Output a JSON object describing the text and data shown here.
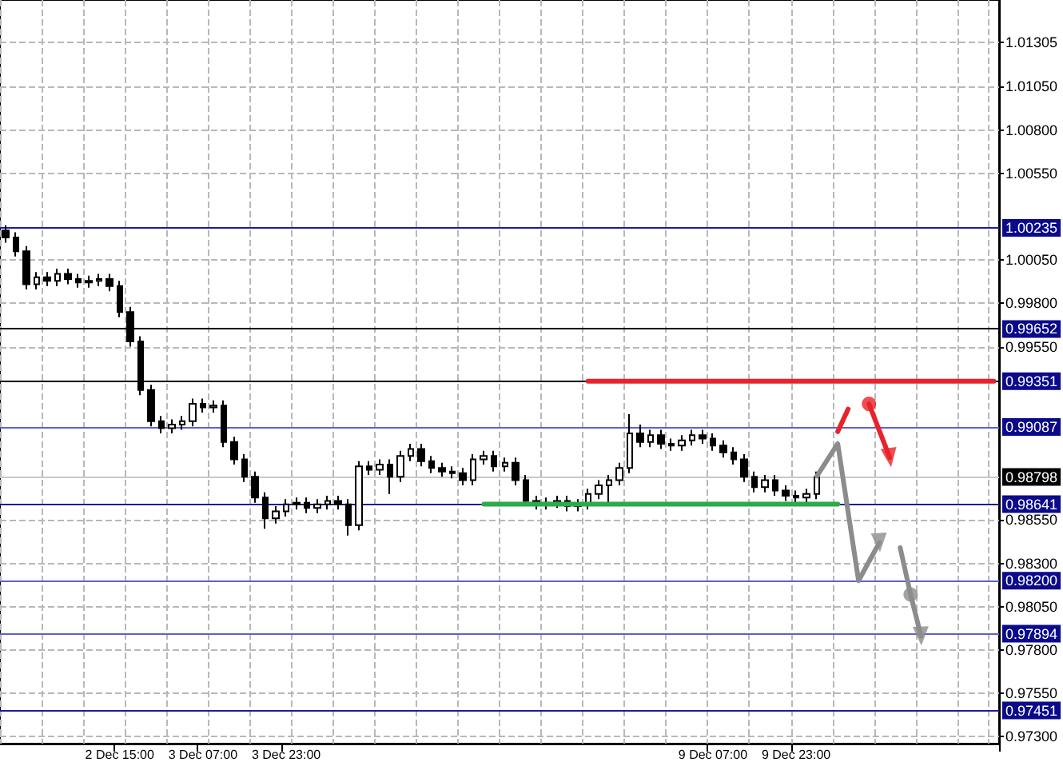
{
  "chart_data": {
    "type": "candlestick",
    "categories": [
      null,
      null,
      null,
      null,
      null,
      null,
      null,
      null,
      null,
      null,
      null,
      "2 Dec 15:00",
      null,
      null,
      null,
      null,
      null,
      null,
      null,
      "3 Dec 07:00",
      null,
      null,
      null,
      null,
      null,
      null,
      null,
      "3 Dec 23:00",
      null,
      null,
      null,
      null,
      null,
      null,
      null,
      null,
      null,
      null,
      null,
      null,
      null,
      null,
      null,
      null,
      null,
      null,
      null,
      null,
      null,
      null,
      null,
      null,
      null,
      null,
      null,
      null,
      null,
      null,
      null,
      null,
      null,
      null,
      null,
      null,
      null,
      null,
      null,
      null,
      "9 Dec 07:00",
      null,
      null,
      null,
      null,
      null,
      null,
      null,
      "9 Dec 23:00",
      null,
      null,
      null,
      null,
      null,
      null,
      null,
      null,
      null,
      null,
      null,
      null,
      null,
      null,
      null,
      null,
      null,
      null,
      null
    ],
    "ohlc": [
      [
        1.0022,
        1.0025,
        1.0015,
        1.0018
      ],
      [
        1.0018,
        1.0021,
        1.0007,
        1.001
      ],
      [
        1.001,
        1.0013,
        0.9988,
        0.9991
      ],
      [
        0.9991,
        0.9998,
        0.9988,
        0.9995
      ],
      [
        0.9995,
        0.9998,
        0.999,
        0.9993
      ],
      [
        0.9993,
        1.0,
        0.999,
        0.9997
      ],
      [
        0.9997,
        1.0,
        0.9991,
        0.9994
      ],
      [
        0.9994,
        0.9997,
        0.9989,
        0.9992
      ],
      [
        0.9992,
        0.9996,
        0.9989,
        0.9993
      ],
      [
        0.9993,
        0.9997,
        0.999,
        0.9994
      ],
      [
        0.9994,
        0.9997,
        0.9987,
        0.999
      ],
      [
        0.999,
        0.9993,
        0.9972,
        0.9975
      ],
      [
        0.9975,
        0.9978,
        0.9955,
        0.9958
      ],
      [
        0.9958,
        0.9961,
        0.9927,
        0.993
      ],
      [
        0.993,
        0.9933,
        0.9909,
        0.9912
      ],
      [
        0.9912,
        0.9915,
        0.9905,
        0.9908
      ],
      [
        0.9908,
        0.9913,
        0.9905,
        0.991
      ],
      [
        0.991,
        0.9915,
        0.9907,
        0.9912
      ],
      [
        0.9912,
        0.9925,
        0.9909,
        0.9922
      ],
      [
        0.9922,
        0.9925,
        0.9917,
        0.992
      ],
      [
        0.992,
        0.9924,
        0.9917,
        0.9921
      ],
      [
        0.9921,
        0.9924,
        0.9897,
        0.99
      ],
      [
        0.99,
        0.9903,
        0.9887,
        0.989
      ],
      [
        0.989,
        0.9893,
        0.9877,
        0.988
      ],
      [
        0.988,
        0.9883,
        0.9865,
        0.9868
      ],
      [
        0.9868,
        0.9871,
        0.985,
        0.9856
      ],
      [
        0.9856,
        0.9863,
        0.9853,
        0.986
      ],
      [
        0.986,
        0.9867,
        0.9857,
        0.9864
      ],
      [
        0.9864,
        0.9868,
        0.9861,
        0.9865
      ],
      [
        0.9865,
        0.9868,
        0.9859,
        0.9862
      ],
      [
        0.9862,
        0.9867,
        0.9859,
        0.9864
      ],
      [
        0.9864,
        0.9869,
        0.9861,
        0.9866
      ],
      [
        0.9866,
        0.9869,
        0.9861,
        0.9864
      ],
      [
        0.9864,
        0.9867,
        0.9846,
        0.9852
      ],
      [
        0.9852,
        0.9889,
        0.9849,
        0.9886
      ],
      [
        0.9886,
        0.9889,
        0.9881,
        0.9884
      ],
      [
        0.9884,
        0.989,
        0.9881,
        0.9887
      ],
      [
        0.9887,
        0.989,
        0.987,
        0.988
      ],
      [
        0.988,
        0.9895,
        0.9877,
        0.9892
      ],
      [
        0.9892,
        0.9899,
        0.9889,
        0.9896
      ],
      [
        0.9896,
        0.9899,
        0.9886,
        0.9889
      ],
      [
        0.9889,
        0.9892,
        0.9882,
        0.9885
      ],
      [
        0.9885,
        0.9888,
        0.988,
        0.9883
      ],
      [
        0.9883,
        0.9886,
        0.9879,
        0.9882
      ],
      [
        0.9882,
        0.9885,
        0.9875,
        0.9878
      ],
      [
        0.9878,
        0.9893,
        0.9875,
        0.989
      ],
      [
        0.989,
        0.9895,
        0.9887,
        0.9892
      ],
      [
        0.9892,
        0.9895,
        0.9883,
        0.9886
      ],
      [
        0.9886,
        0.9891,
        0.9883,
        0.9888
      ],
      [
        0.9888,
        0.9891,
        0.9875,
        0.9878
      ],
      [
        0.9878,
        0.9881,
        0.9863,
        0.9866
      ],
      [
        0.9866,
        0.9869,
        0.9861,
        0.9864
      ],
      [
        0.9864,
        0.9868,
        0.9861,
        0.9865
      ],
      [
        0.9865,
        0.9869,
        0.9862,
        0.9866
      ],
      [
        0.9866,
        0.9869,
        0.986,
        0.9863
      ],
      [
        0.9863,
        0.9867,
        0.986,
        0.9864
      ],
      [
        0.9864,
        0.9873,
        0.9861,
        0.987
      ],
      [
        0.987,
        0.9878,
        0.9867,
        0.9875
      ],
      [
        0.9875,
        0.9881,
        0.9864,
        0.9878
      ],
      [
        0.9878,
        0.9888,
        0.9875,
        0.9885
      ],
      [
        0.9885,
        0.9916,
        0.9882,
        0.9905
      ],
      [
        0.9905,
        0.991,
        0.9897,
        0.99
      ],
      [
        0.99,
        0.9907,
        0.9897,
        0.9904
      ],
      [
        0.9904,
        0.9907,
        0.9896,
        0.9899
      ],
      [
        0.9899,
        0.9902,
        0.9895,
        0.9898
      ],
      [
        0.9898,
        0.9904,
        0.9895,
        0.9901
      ],
      [
        0.9901,
        0.9907,
        0.9898,
        0.9904
      ],
      [
        0.9904,
        0.9907,
        0.9899,
        0.9902
      ],
      [
        0.9902,
        0.9905,
        0.9895,
        0.9898
      ],
      [
        0.9898,
        0.9901,
        0.9891,
        0.9894
      ],
      [
        0.9894,
        0.9897,
        0.9887,
        0.989
      ],
      [
        0.989,
        0.9893,
        0.9877,
        0.988
      ],
      [
        0.988,
        0.9883,
        0.9871,
        0.9874
      ],
      [
        0.9874,
        0.9881,
        0.9871,
        0.9878
      ],
      [
        0.9878,
        0.9881,
        0.9869,
        0.9872
      ],
      [
        0.9872,
        0.9875,
        0.9866,
        0.9869
      ],
      [
        0.9869,
        0.9872,
        0.9865,
        0.9868
      ],
      [
        0.9868,
        0.9873,
        0.9865,
        0.987
      ],
      [
        0.987,
        0.9883,
        0.9867,
        0.98798
      ],
      null,
      null,
      null,
      null,
      null,
      null,
      null,
      null,
      null,
      null,
      null,
      null,
      null,
      null,
      null,
      null,
      null
    ],
    "color": "#000000",
    "series": [
      {
        "type": "line",
        "color": "#e8232a",
        "values": [
          null,
          null,
          null,
          null,
          null,
          null,
          null,
          null,
          null,
          null,
          null,
          null,
          null,
          null,
          null,
          null,
          null,
          null,
          null,
          null,
          null,
          null,
          null,
          null,
          null,
          null,
          null,
          null,
          null,
          null,
          null,
          null,
          null,
          null,
          null,
          null,
          null,
          null,
          null,
          null,
          null,
          null,
          null,
          null,
          null,
          null,
          null,
          null,
          null,
          null,
          null,
          null,
          null,
          null,
          null,
          null,
          0.99351,
          0.99351,
          0.99351,
          0.99351,
          0.99351,
          0.99351,
          0.99351,
          0.99351,
          0.99351,
          0.99351,
          0.99351,
          0.99351,
          0.99351,
          0.99351,
          0.99351,
          0.99351,
          0.99351,
          0.99351,
          0.99351,
          0.99351,
          0.99351,
          0.99351,
          0.99351,
          0.99351,
          0.99351,
          0.99351,
          0.99351,
          0.99351,
          0.99351,
          0.99351,
          0.99351,
          0.99351,
          0.99351,
          0.99351,
          0.99351,
          0.99351,
          0.99351,
          0.99351,
          0.99351,
          0.99351
        ]
      },
      {
        "type": "line",
        "color": "#2eaa4a",
        "values": [
          null,
          null,
          null,
          null,
          null,
          null,
          null,
          null,
          null,
          null,
          null,
          null,
          null,
          null,
          null,
          null,
          null,
          null,
          null,
          null,
          null,
          null,
          null,
          null,
          null,
          null,
          null,
          null,
          null,
          null,
          null,
          null,
          null,
          null,
          null,
          null,
          null,
          null,
          null,
          null,
          null,
          null,
          null,
          null,
          null,
          null,
          0.98641,
          0.98641,
          0.98641,
          0.98641,
          0.98641,
          0.98641,
          0.98641,
          0.98641,
          0.98641,
          0.98641,
          0.98641,
          0.98641,
          0.98641,
          0.98641,
          0.98641,
          0.98641,
          0.98641,
          0.98641,
          0.98641,
          0.98641,
          0.98641,
          0.98641,
          0.98641,
          0.98641,
          0.98641,
          0.98641,
          0.98641,
          0.98641,
          0.98641,
          0.98641,
          0.98641,
          0.98641,
          0.98641,
          0.98641,
          0.98641,
          null,
          null,
          null,
          null,
          null,
          null,
          null,
          null,
          null,
          null,
          null,
          null,
          null,
          null,
          null
        ]
      },
      {
        "type": "line",
        "color": "#8c8c8c",
        "values": [
          null,
          null,
          null,
          null,
          null,
          null,
          null,
          null,
          null,
          null,
          null,
          null,
          null,
          null,
          null,
          null,
          null,
          null,
          null,
          null,
          null,
          null,
          null,
          null,
          null,
          null,
          null,
          null,
          null,
          null,
          null,
          null,
          null,
          null,
          null,
          null,
          null,
          null,
          null,
          null,
          null,
          null,
          null,
          null,
          null,
          null,
          null,
          null,
          null,
          null,
          null,
          null,
          null,
          null,
          null,
          null,
          null,
          null,
          null,
          null,
          null,
          null,
          null,
          null,
          null,
          null,
          null,
          null,
          null,
          null,
          null,
          null,
          null,
          null,
          null,
          null,
          null,
          null,
          0.98804,
          null,
          0.9899,
          null,
          0.982,
          null,
          0.9842,
          null,
          null,
          null,
          null,
          null,
          null,
          null,
          null,
          null,
          null,
          null
        ]
      },
      {
        "type": "line",
        "color": "#8c8c8c",
        "values": [
          null,
          null,
          null,
          null,
          null,
          null,
          null,
          null,
          null,
          null,
          null,
          null,
          null,
          null,
          null,
          null,
          null,
          null,
          null,
          null,
          null,
          null,
          null,
          null,
          null,
          null,
          null,
          null,
          null,
          null,
          null,
          null,
          null,
          null,
          null,
          null,
          null,
          null,
          null,
          null,
          null,
          null,
          null,
          null,
          null,
          null,
          null,
          null,
          null,
          null,
          null,
          null,
          null,
          null,
          null,
          null,
          null,
          null,
          null,
          null,
          null,
          null,
          null,
          null,
          null,
          null,
          null,
          null,
          null,
          null,
          null,
          null,
          null,
          null,
          null,
          null,
          null,
          null,
          null,
          null,
          null,
          null,
          null,
          null,
          null,
          null,
          0.9839,
          0.9812,
          0.9788,
          null,
          null,
          null,
          null,
          null,
          null,
          null
        ]
      },
      {
        "type": "line",
        "color": "#e8232a",
        "values": [
          null,
          null,
          null,
          null,
          null,
          null,
          null,
          null,
          null,
          null,
          null,
          null,
          null,
          null,
          null,
          null,
          null,
          null,
          null,
          null,
          null,
          null,
          null,
          null,
          null,
          null,
          null,
          null,
          null,
          null,
          null,
          null,
          null,
          null,
          null,
          null,
          null,
          null,
          null,
          null,
          null,
          null,
          null,
          null,
          null,
          null,
          null,
          null,
          null,
          null,
          null,
          null,
          null,
          null,
          null,
          null,
          null,
          null,
          null,
          null,
          null,
          null,
          null,
          null,
          null,
          null,
          null,
          null,
          null,
          null,
          null,
          null,
          null,
          null,
          null,
          null,
          null,
          null,
          null,
          null,
          0.9906,
          0.9919,
          null,
          null,
          null,
          null,
          null,
          null,
          null,
          null,
          null,
          null,
          null,
          null,
          null,
          null
        ]
      },
      {
        "type": "scatter",
        "color": "#8c8c8c",
        "marker": "triangle",
        "values": [
          null,
          null,
          null,
          null,
          null,
          null,
          null,
          null,
          null,
          null,
          null,
          null,
          null,
          null,
          null,
          null,
          null,
          null,
          null,
          null,
          null,
          null,
          null,
          null,
          null,
          null,
          null,
          null,
          null,
          null,
          null,
          null,
          null,
          null,
          null,
          null,
          null,
          null,
          null,
          null,
          null,
          null,
          null,
          null,
          null,
          null,
          null,
          null,
          null,
          null,
          null,
          null,
          null,
          null,
          null,
          null,
          null,
          null,
          null,
          null,
          null,
          null,
          null,
          null,
          null,
          null,
          null,
          null,
          null,
          null,
          null,
          null,
          null,
          null,
          null,
          null,
          null,
          null,
          null,
          null,
          null,
          null,
          null,
          null,
          0.9842,
          null,
          null,
          null,
          0.9788,
          null,
          null,
          null,
          null,
          null,
          null,
          null
        ]
      },
      {
        "type": "scatter",
        "color": "#e8232a",
        "marker": "triangle",
        "values": [
          null,
          null,
          null,
          null,
          null,
          null,
          null,
          null,
          null,
          null,
          null,
          null,
          null,
          null,
          null,
          null,
          null,
          null,
          null,
          null,
          null,
          null,
          null,
          null,
          null,
          null,
          null,
          null,
          null,
          null,
          null,
          null,
          null,
          null,
          null,
          null,
          null,
          null,
          null,
          null,
          null,
          null,
          null,
          null,
          null,
          null,
          null,
          null,
          null,
          null,
          null,
          null,
          null,
          null,
          null,
          null,
          null,
          null,
          null,
          null,
          null,
          null,
          null,
          null,
          null,
          null,
          null,
          null,
          null,
          null,
          null,
          null,
          null,
          null,
          null,
          null,
          null,
          null,
          null,
          null,
          null,
          null,
          null,
          null,
          null,
          0.9891,
          null,
          null,
          null,
          null,
          null,
          null,
          null,
          null,
          null,
          null
        ]
      },
      {
        "type": "line",
        "color": "#e8232a",
        "values": [
          null,
          null,
          null,
          null,
          null,
          null,
          null,
          null,
          null,
          null,
          null,
          null,
          null,
          null,
          null,
          null,
          null,
          null,
          null,
          null,
          null,
          null,
          null,
          null,
          null,
          null,
          null,
          null,
          null,
          null,
          null,
          null,
          null,
          null,
          null,
          null,
          null,
          null,
          null,
          null,
          null,
          null,
          null,
          null,
          null,
          null,
          null,
          null,
          null,
          null,
          null,
          null,
          null,
          null,
          null,
          null,
          null,
          null,
          null,
          null,
          null,
          null,
          null,
          null,
          null,
          null,
          null,
          null,
          null,
          null,
          null,
          null,
          null,
          null,
          null,
          null,
          null,
          null,
          null,
          null,
          null,
          null,
          null,
          0.9922,
          null,
          0.9891,
          null,
          null,
          null,
          null,
          null,
          null,
          null,
          null,
          null,
          null
        ]
      },
      {
        "type": "scatter",
        "color": "#e8232a",
        "marker": "circle",
        "values": [
          null,
          null,
          null,
          null,
          null,
          null,
          null,
          null,
          null,
          null,
          null,
          null,
          null,
          null,
          null,
          null,
          null,
          null,
          null,
          null,
          null,
          null,
          null,
          null,
          null,
          null,
          null,
          null,
          null,
          null,
          null,
          null,
          null,
          null,
          null,
          null,
          null,
          null,
          null,
          null,
          null,
          null,
          null,
          null,
          null,
          null,
          null,
          null,
          null,
          null,
          null,
          null,
          null,
          null,
          null,
          null,
          null,
          null,
          null,
          null,
          null,
          null,
          null,
          null,
          null,
          null,
          null,
          null,
          null,
          null,
          null,
          null,
          null,
          null,
          null,
          null,
          null,
          null,
          null,
          null,
          null,
          null,
          null,
          0.9922,
          null,
          null,
          null,
          null,
          null,
          null,
          null,
          null,
          null,
          null,
          null,
          null
        ]
      },
      {
        "type": "scatter",
        "color": "#8c8c8c",
        "marker": "circle",
        "values": [
          null,
          null,
          null,
          null,
          null,
          null,
          null,
          null,
          null,
          null,
          null,
          null,
          null,
          null,
          null,
          null,
          null,
          null,
          null,
          null,
          null,
          null,
          null,
          null,
          null,
          null,
          null,
          null,
          null,
          null,
          null,
          null,
          null,
          null,
          null,
          null,
          null,
          null,
          null,
          null,
          null,
          null,
          null,
          null,
          null,
          null,
          null,
          null,
          null,
          null,
          null,
          null,
          null,
          null,
          null,
          null,
          null,
          null,
          null,
          null,
          null,
          null,
          null,
          null,
          null,
          null,
          null,
          null,
          null,
          null,
          null,
          null,
          null,
          null,
          null,
          null,
          null,
          null,
          null,
          null,
          null,
          null,
          null,
          null,
          null,
          null,
          null,
          0.9812,
          null,
          null,
          null,
          null,
          null,
          null,
          null,
          null
        ]
      }
    ],
    "ylim": [
      0.9726,
      1.0155
    ],
    "yticks": [
      {
        "value": 0.973,
        "label": "0.97300"
      },
      {
        "value": 0.9755,
        "label": "0.97550"
      },
      {
        "value": 0.978,
        "label": "0.97800"
      },
      {
        "value": 0.9805,
        "label": "0.98050"
      },
      {
        "value": 0.983,
        "label": "0.98300"
      },
      {
        "value": 0.9855,
        "label": "0.98550"
      },
      {
        "value": 0.9955,
        "label": "0.99550"
      },
      {
        "value": 0.998,
        "label": "0.99800"
      },
      {
        "value": 1.0005,
        "label": "1.00050"
      },
      {
        "value": 1.0055,
        "label": "1.00550"
      },
      {
        "value": 1.008,
        "label": "1.00800"
      },
      {
        "value": 1.0105,
        "label": "1.01050"
      },
      {
        "value": 1.01305,
        "label": "1.01305"
      }
    ],
    "ref_lines": [
      {
        "axis": "y",
        "value": 1.00235,
        "label": "1.00235",
        "color": "#1c1c9c"
      },
      {
        "axis": "y",
        "value": 0.99652,
        "label": "0.99652",
        "color": "#000000"
      },
      {
        "axis": "y",
        "value": 0.99351,
        "label": "0.99351",
        "color": "#000000"
      },
      {
        "axis": "y",
        "value": 0.99087,
        "label": "0.99087",
        "color": "#6060c8"
      },
      {
        "axis": "y",
        "value": 0.98798,
        "label": "0.98798",
        "color": "#c8c8c8"
      },
      {
        "axis": "y",
        "value": 0.98641,
        "label": "0.98641",
        "color": "#1c1c9c"
      },
      {
        "axis": "y",
        "value": 0.982,
        "label": "0.98200",
        "color": "#6060c8"
      },
      {
        "axis": "y",
        "value": 0.97894,
        "label": "0.97894",
        "color": "#6060c8"
      },
      {
        "axis": "y",
        "value": 0.97451,
        "label": "0.97451",
        "color": "#1c1c9c"
      }
    ],
    "grid": true
  }
}
